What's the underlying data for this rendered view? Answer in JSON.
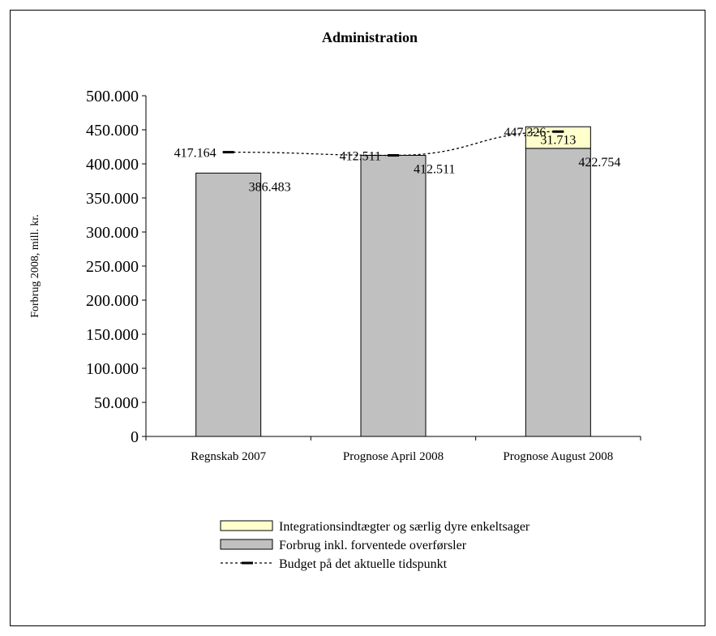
{
  "chart_data": {
    "type": "bar",
    "title": "Administration",
    "ylabel": "Forbrug 2008, mill. kr.",
    "xlabel": "",
    "ylim": [
      0,
      500000
    ],
    "yticks": [
      0,
      50000,
      100000,
      150000,
      200000,
      250000,
      300000,
      350000,
      400000,
      450000,
      500000
    ],
    "ytick_labels": [
      "0",
      "50.000",
      "100.000",
      "150.000",
      "200.000",
      "250.000",
      "300.000",
      "350.000",
      "400.000",
      "450.000",
      "500.000"
    ],
    "categories": [
      "Regnskab 2007",
      "Prognose April 2008",
      "Prognose August 2008"
    ],
    "stacked": true,
    "series": [
      {
        "name": "Forbrug inkl. forventede overførsler",
        "type": "bar",
        "color": "#c0c0c0",
        "values": [
          386483,
          412511,
          422754
        ],
        "labels": [
          "386.483",
          "412.511",
          "422.754"
        ]
      },
      {
        "name": "Integrationsindtægter og særlig dyre enkeltsager",
        "type": "bar",
        "color": "#ffffcc",
        "values": [
          null,
          null,
          31713
        ],
        "labels": [
          "",
          "",
          "31.713"
        ]
      },
      {
        "name": "Budget på det aktuelle tidspunkt",
        "type": "line",
        "style": "dashed",
        "color": "#000000",
        "values": [
          417164,
          412511,
          447326
        ],
        "labels": [
          "417.164",
          "412.511",
          "447.326"
        ]
      }
    ],
    "legend_position": "bottom",
    "grid": false
  }
}
